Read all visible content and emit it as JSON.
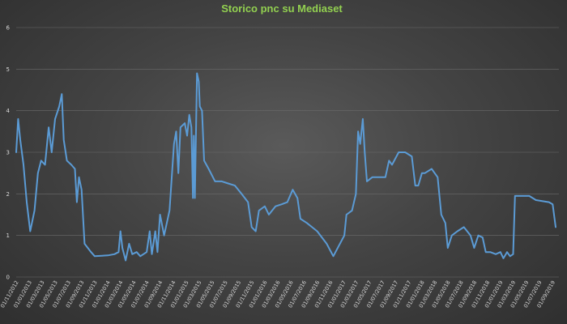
{
  "chart_data": {
    "type": "line",
    "title": "Storico pnc su Mediaset",
    "xlabel": "",
    "ylabel": "",
    "ylim": [
      0,
      6
    ],
    "yticks": [
      0,
      1,
      2,
      3,
      4,
      5,
      6
    ],
    "grid": true,
    "legend": "none",
    "colors": {
      "title": "#92d050",
      "series": "#5b9bd5",
      "grid": "#6b6b6b",
      "text": "#d9d9d9"
    },
    "x_range": [
      "2012-11-01",
      "2019-09-30"
    ],
    "x_tick_labels": [
      "01/11/2012",
      "01/01/2013",
      "01/03/2013",
      "01/05/2013",
      "01/07/2013",
      "01/09/2013",
      "01/11/2013",
      "01/01/2014",
      "01/03/2014",
      "01/05/2014",
      "01/07/2014",
      "01/09/2014",
      "01/11/2014",
      "01/01/2015",
      "01/03/2015",
      "01/05/2015",
      "01/07/2015",
      "01/09/2015",
      "01/11/2015",
      "01/01/2016",
      "01/03/2016",
      "01/05/2016",
      "01/07/2016",
      "01/09/2016",
      "01/11/2016",
      "01/01/2017",
      "01/03/2017",
      "01/05/2017",
      "01/07/2017",
      "01/09/2017",
      "01/11/2017",
      "01/01/2018",
      "01/03/2018",
      "01/05/2018",
      "01/07/2018",
      "01/09/2018",
      "01/11/2018",
      "01/01/2019",
      "01/03/2019",
      "01/05/2019",
      "01/07/2019",
      "01/09/2019"
    ],
    "series": [
      {
        "values": [
          [
            "2012-11-01",
            3.0
          ],
          [
            "2012-11-10",
            3.8
          ],
          [
            "2012-11-20",
            3.3
          ],
          [
            "2012-12-05",
            2.7
          ],
          [
            "2012-12-20",
            1.8
          ],
          [
            "2013-01-05",
            1.1
          ],
          [
            "2013-01-25",
            1.6
          ],
          [
            "2013-02-10",
            2.5
          ],
          [
            "2013-02-25",
            2.8
          ],
          [
            "2013-03-15",
            2.7
          ],
          [
            "2013-04-01",
            3.6
          ],
          [
            "2013-04-15",
            3.0
          ],
          [
            "2013-05-01",
            3.8
          ],
          [
            "2013-05-20",
            4.1
          ],
          [
            "2013-06-01",
            4.4
          ],
          [
            "2013-06-10",
            3.3
          ],
          [
            "2013-06-25",
            2.8
          ],
          [
            "2013-07-15",
            2.7
          ],
          [
            "2013-08-01",
            2.6
          ],
          [
            "2013-08-10",
            1.8
          ],
          [
            "2013-08-20",
            2.4
          ],
          [
            "2013-09-01",
            2.1
          ],
          [
            "2013-09-15",
            0.8
          ],
          [
            "2013-10-15",
            0.6
          ],
          [
            "2013-11-01",
            0.5
          ],
          [
            "2014-01-01",
            0.52
          ],
          [
            "2014-02-01",
            0.55
          ],
          [
            "2014-02-20",
            0.6
          ],
          [
            "2014-03-01",
            1.1
          ],
          [
            "2014-03-10",
            0.7
          ],
          [
            "2014-03-25",
            0.4
          ],
          [
            "2014-04-10",
            0.8
          ],
          [
            "2014-04-25",
            0.55
          ],
          [
            "2014-05-15",
            0.6
          ],
          [
            "2014-06-01",
            0.5
          ],
          [
            "2014-07-01",
            0.6
          ],
          [
            "2014-07-15",
            1.1
          ],
          [
            "2014-07-25",
            0.55
          ],
          [
            "2014-08-10",
            1.1
          ],
          [
            "2014-08-20",
            0.6
          ],
          [
            "2014-09-01",
            1.5
          ],
          [
            "2014-09-20",
            1.0
          ],
          [
            "2014-10-15",
            1.6
          ],
          [
            "2014-11-05",
            3.2
          ],
          [
            "2014-11-15",
            3.5
          ],
          [
            "2014-11-25",
            2.5
          ],
          [
            "2014-12-05",
            3.6
          ],
          [
            "2014-12-25",
            3.7
          ],
          [
            "2015-01-05",
            3.4
          ],
          [
            "2015-01-15",
            3.9
          ],
          [
            "2015-01-25",
            3.6
          ],
          [
            "2015-02-01",
            1.9
          ],
          [
            "2015-02-05",
            3.4
          ],
          [
            "2015-02-10",
            1.9
          ],
          [
            "2015-02-20",
            4.9
          ],
          [
            "2015-02-28",
            4.7
          ],
          [
            "2015-03-05",
            4.1
          ],
          [
            "2015-03-15",
            4.0
          ],
          [
            "2015-03-25",
            2.8
          ],
          [
            "2015-04-15",
            2.6
          ],
          [
            "2015-05-15",
            2.3
          ],
          [
            "2015-06-15",
            2.3
          ],
          [
            "2015-07-15",
            2.25
          ],
          [
            "2015-08-15",
            2.2
          ],
          [
            "2015-09-15",
            2.0
          ],
          [
            "2015-10-15",
            1.8
          ],
          [
            "2015-11-01",
            1.2
          ],
          [
            "2015-11-20",
            1.1
          ],
          [
            "2015-12-05",
            1.6
          ],
          [
            "2016-01-01",
            1.7
          ],
          [
            "2016-01-20",
            1.5
          ],
          [
            "2016-02-20",
            1.7
          ],
          [
            "2016-03-20",
            1.75
          ],
          [
            "2016-04-15",
            1.8
          ],
          [
            "2016-05-10",
            2.1
          ],
          [
            "2016-06-01",
            1.9
          ],
          [
            "2016-06-15",
            1.4
          ],
          [
            "2016-07-15",
            1.3
          ],
          [
            "2016-09-01",
            1.1
          ],
          [
            "2016-10-15",
            0.8
          ],
          [
            "2016-11-15",
            0.5
          ],
          [
            "2017-01-05",
            1.0
          ],
          [
            "2017-01-15",
            1.5
          ],
          [
            "2017-02-10",
            1.6
          ],
          [
            "2017-02-28",
            2.0
          ],
          [
            "2017-03-10",
            3.5
          ],
          [
            "2017-03-20",
            3.2
          ],
          [
            "2017-04-01",
            3.8
          ],
          [
            "2017-04-10",
            3.0
          ],
          [
            "2017-04-20",
            2.3
          ],
          [
            "2017-05-15",
            2.4
          ],
          [
            "2017-06-15",
            2.4
          ],
          [
            "2017-07-15",
            2.4
          ],
          [
            "2017-08-01",
            2.8
          ],
          [
            "2017-08-15",
            2.7
          ],
          [
            "2017-09-15",
            3.0
          ],
          [
            "2017-10-15",
            3.0
          ],
          [
            "2017-11-15",
            2.9
          ],
          [
            "2017-12-01",
            2.2
          ],
          [
            "2017-12-15",
            2.2
          ],
          [
            "2018-01-01",
            2.5
          ],
          [
            "2018-01-15",
            2.5
          ],
          [
            "2018-02-15",
            2.6
          ],
          [
            "2018-03-15",
            2.4
          ],
          [
            "2018-04-01",
            1.5
          ],
          [
            "2018-04-20",
            1.3
          ],
          [
            "2018-05-01",
            0.7
          ],
          [
            "2018-05-20",
            1.0
          ],
          [
            "2018-06-15",
            1.1
          ],
          [
            "2018-07-15",
            1.2
          ],
          [
            "2018-08-15",
            1.0
          ],
          [
            "2018-09-01",
            0.7
          ],
          [
            "2018-09-20",
            1.0
          ],
          [
            "2018-10-10",
            0.95
          ],
          [
            "2018-10-25",
            0.6
          ],
          [
            "2018-11-15",
            0.6
          ],
          [
            "2018-12-10",
            0.55
          ],
          [
            "2019-01-01",
            0.6
          ],
          [
            "2019-01-15",
            0.45
          ],
          [
            "2019-02-01",
            0.6
          ],
          [
            "2019-02-15",
            0.5
          ],
          [
            "2019-03-01",
            0.55
          ],
          [
            "2019-03-10",
            1.95
          ],
          [
            "2019-04-15",
            1.95
          ],
          [
            "2019-05-15",
            1.95
          ],
          [
            "2019-06-15",
            1.85
          ],
          [
            "2019-08-15",
            1.8
          ],
          [
            "2019-09-01",
            1.75
          ],
          [
            "2019-09-15",
            1.2
          ]
        ]
      }
    ]
  }
}
